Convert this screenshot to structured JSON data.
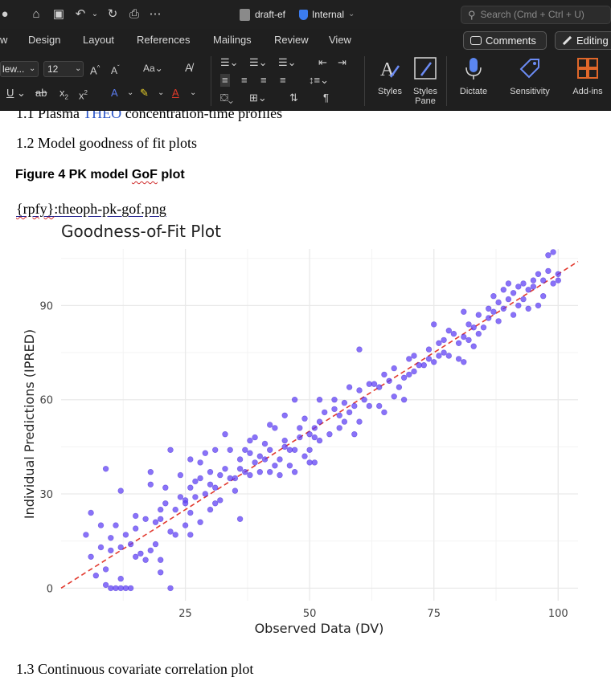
{
  "titlebar": {
    "doc_title": "draft-ef",
    "sensitivity_label": "Internal",
    "search_placeholder": "Search (Cmd + Ctrl + U)"
  },
  "tabs": [
    "w",
    "Design",
    "Layout",
    "References",
    "Mailings",
    "Review",
    "View"
  ],
  "header_buttons": {
    "comments": "Comments",
    "editing": "Editing"
  },
  "toolbar": {
    "font_name": "lew...",
    "font_size": "12",
    "styles_label": "Styles",
    "styles_pane_label_1": "Styles",
    "styles_pane_label_2": "Pane",
    "dictate_label": "Dictate",
    "sensitivity_label": "Sensitivity",
    "addins_label": "Add-ins"
  },
  "colors": {
    "accent_blue": "#3b7cf0",
    "point_fill": "#5b3cf5",
    "identity_line": "#e23a2f",
    "addins_orange": "#e0672a"
  },
  "document": {
    "cut_line_a": "1.1",
    "cut_line_b": "Plasma",
    "cut_line_c": "THEO",
    "cut_line_d": "concentration-time profiles",
    "heading_12": "1.2  Model goodness of fit plots",
    "figure_caption_prefix": "Figure 4 PK model ",
    "figure_caption_gof": "GoF",
    "figure_caption_suffix": " plot",
    "figure_ref_a": "{rpfy}",
    "figure_ref_b": ":theoph-pk-gof.png",
    "heading_13": "1.3  Continuous covariate correlation plot"
  },
  "chart_data": {
    "type": "scatter",
    "title": "Goodness-of-Fit Plot",
    "xlabel": "Observed Data (DV)",
    "ylabel": "Individual Predictions (IPRED)",
    "xlim": [
      0,
      104
    ],
    "ylim": [
      -4,
      108
    ],
    "xticks": [
      25,
      50,
      75,
      100
    ],
    "yticks": [
      0,
      30,
      60,
      90
    ],
    "grid": true,
    "identity_line": {
      "from": [
        0,
        0
      ],
      "to": [
        104,
        104
      ],
      "style": "dashed"
    },
    "points": [
      [
        5,
        17
      ],
      [
        6,
        10
      ],
      [
        6,
        24
      ],
      [
        7,
        4
      ],
      [
        8,
        13
      ],
      [
        8,
        20
      ],
      [
        9,
        1
      ],
      [
        9,
        6
      ],
      [
        9,
        38
      ],
      [
        10,
        0
      ],
      [
        10,
        16
      ],
      [
        10,
        12
      ],
      [
        11,
        0
      ],
      [
        11,
        20
      ],
      [
        12,
        13
      ],
      [
        12,
        3
      ],
      [
        12,
        0
      ],
      [
        12,
        31
      ],
      [
        13,
        17
      ],
      [
        13,
        0
      ],
      [
        14,
        14
      ],
      [
        14,
        0
      ],
      [
        15,
        23
      ],
      [
        15,
        19
      ],
      [
        15,
        10
      ],
      [
        16,
        11
      ],
      [
        17,
        9
      ],
      [
        17,
        22
      ],
      [
        18,
        12
      ],
      [
        18,
        33
      ],
      [
        18,
        37
      ],
      [
        19,
        21
      ],
      [
        19,
        14
      ],
      [
        20,
        22
      ],
      [
        20,
        25
      ],
      [
        20,
        9
      ],
      [
        20,
        5
      ],
      [
        21,
        32
      ],
      [
        21,
        27
      ],
      [
        22,
        18
      ],
      [
        22,
        44
      ],
      [
        22,
        0
      ],
      [
        23,
        25
      ],
      [
        23,
        17
      ],
      [
        24,
        29
      ],
      [
        24,
        36
      ],
      [
        25,
        20
      ],
      [
        25,
        28
      ],
      [
        25,
        27
      ],
      [
        26,
        24
      ],
      [
        26,
        32
      ],
      [
        26,
        17
      ],
      [
        26,
        41
      ],
      [
        27,
        29
      ],
      [
        27,
        34
      ],
      [
        28,
        35
      ],
      [
        28,
        40
      ],
      [
        28,
        21
      ],
      [
        29,
        43
      ],
      [
        29,
        30
      ],
      [
        30,
        37
      ],
      [
        30,
        33
      ],
      [
        30,
        25
      ],
      [
        31,
        32
      ],
      [
        31,
        27
      ],
      [
        31,
        44
      ],
      [
        32,
        36
      ],
      [
        32,
        28
      ],
      [
        33,
        38
      ],
      [
        33,
        49
      ],
      [
        34,
        35
      ],
      [
        34,
        44
      ],
      [
        35,
        35
      ],
      [
        35,
        31
      ],
      [
        36,
        38
      ],
      [
        36,
        41
      ],
      [
        36,
        22
      ],
      [
        37,
        44
      ],
      [
        37,
        37
      ],
      [
        38,
        47
      ],
      [
        38,
        36
      ],
      [
        38,
        43
      ],
      [
        39,
        40
      ],
      [
        39,
        48
      ],
      [
        40,
        42
      ],
      [
        40,
        37
      ],
      [
        41,
        41
      ],
      [
        41,
        46
      ],
      [
        42,
        44
      ],
      [
        42,
        37
      ],
      [
        42,
        52
      ],
      [
        43,
        39
      ],
      [
        43,
        51
      ],
      [
        44,
        41
      ],
      [
        44,
        36
      ],
      [
        45,
        45
      ],
      [
        45,
        47
      ],
      [
        45,
        55
      ],
      [
        46,
        39
      ],
      [
        46,
        44
      ],
      [
        47,
        44
      ],
      [
        47,
        37
      ],
      [
        47,
        60
      ],
      [
        48,
        48
      ],
      [
        48,
        51
      ],
      [
        49,
        42
      ],
      [
        49,
        54
      ],
      [
        50,
        49
      ],
      [
        50,
        40
      ],
      [
        50,
        44
      ],
      [
        51,
        51
      ],
      [
        51,
        48
      ],
      [
        51,
        40
      ],
      [
        52,
        53
      ],
      [
        52,
        47
      ],
      [
        52,
        60
      ],
      [
        53,
        56
      ],
      [
        54,
        49
      ],
      [
        55,
        60
      ],
      [
        55,
        57
      ],
      [
        56,
        55
      ],
      [
        56,
        51
      ],
      [
        57,
        59
      ],
      [
        57,
        53
      ],
      [
        58,
        64
      ],
      [
        58,
        56
      ],
      [
        59,
        58
      ],
      [
        59,
        49
      ],
      [
        60,
        53
      ],
      [
        60,
        63
      ],
      [
        60,
        76
      ],
      [
        61,
        60
      ],
      [
        62,
        58
      ],
      [
        62,
        65
      ],
      [
        63,
        65
      ],
      [
        64,
        64
      ],
      [
        64,
        58
      ],
      [
        65,
        68
      ],
      [
        65,
        56
      ],
      [
        66,
        66
      ],
      [
        67,
        70
      ],
      [
        67,
        61
      ],
      [
        68,
        64
      ],
      [
        69,
        67
      ],
      [
        69,
        60
      ],
      [
        70,
        73
      ],
      [
        70,
        68
      ],
      [
        71,
        74
      ],
      [
        71,
        69
      ],
      [
        72,
        71
      ],
      [
        73,
        71
      ],
      [
        74,
        76
      ],
      [
        74,
        73
      ],
      [
        75,
        72
      ],
      [
        75,
        84
      ],
      [
        76,
        78
      ],
      [
        76,
        74
      ],
      [
        77,
        79
      ],
      [
        77,
        75
      ],
      [
        78,
        82
      ],
      [
        78,
        74
      ],
      [
        79,
        81
      ],
      [
        80,
        73
      ],
      [
        80,
        78
      ],
      [
        81,
        80
      ],
      [
        81,
        72
      ],
      [
        81,
        88
      ],
      [
        82,
        84
      ],
      [
        82,
        79
      ],
      [
        83,
        83
      ],
      [
        83,
        77
      ],
      [
        84,
        87
      ],
      [
        84,
        81
      ],
      [
        85,
        83
      ],
      [
        86,
        86
      ],
      [
        86,
        89
      ],
      [
        87,
        88
      ],
      [
        87,
        93
      ],
      [
        88,
        91
      ],
      [
        88,
        85
      ],
      [
        89,
        89
      ],
      [
        89,
        95
      ],
      [
        90,
        92
      ],
      [
        90,
        97
      ],
      [
        91,
        94
      ],
      [
        91,
        87
      ],
      [
        92,
        96
      ],
      [
        92,
        90
      ],
      [
        93,
        97
      ],
      [
        93,
        92
      ],
      [
        94,
        95
      ],
      [
        94,
        89
      ],
      [
        95,
        96
      ],
      [
        95,
        98
      ],
      [
        96,
        100
      ],
      [
        96,
        90
      ],
      [
        97,
        98
      ],
      [
        97,
        93
      ],
      [
        98,
        101
      ],
      [
        98,
        106
      ],
      [
        99,
        97
      ],
      [
        99,
        107
      ],
      [
        100,
        98
      ],
      [
        100,
        100
      ]
    ]
  }
}
